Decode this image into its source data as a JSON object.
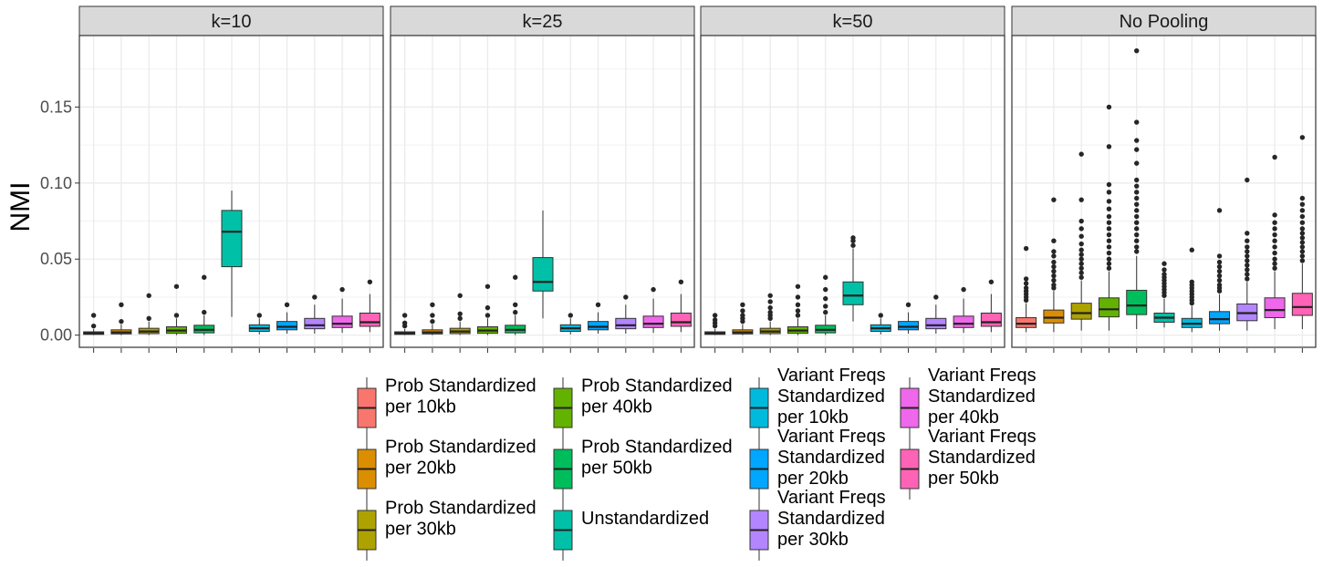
{
  "chart_data": {
    "type": "boxplot",
    "ylabel": "NMI",
    "xlabel": "",
    "ylim": [
      -0.008,
      0.197
    ],
    "y_ticks": [
      "0.00",
      "0.05",
      "0.10",
      "0.15"
    ],
    "grid": true,
    "legend_position": "bottom",
    "panels": [
      {
        "label": "k=10",
        "boxes": [
          {
            "series": 0,
            "whisker_low": 0.0,
            "q1": 0.0005,
            "median": 0.0012,
            "q3": 0.0022,
            "whisker_high": 0.004,
            "outliers": [
              0.006,
              0.013
            ]
          },
          {
            "series": 1,
            "whisker_low": 0.0,
            "q1": 0.0008,
            "median": 0.0018,
            "q3": 0.0035,
            "whisker_high": 0.007,
            "outliers": [
              0.009,
              0.02
            ]
          },
          {
            "series": 2,
            "whisker_low": 0.0,
            "q1": 0.001,
            "median": 0.0024,
            "q3": 0.0045,
            "whisker_high": 0.009,
            "outliers": [
              0.011,
              0.026
            ]
          },
          {
            "series": 3,
            "whisker_low": 0.0,
            "q1": 0.0012,
            "median": 0.003,
            "q3": 0.0055,
            "whisker_high": 0.011,
            "outliers": [
              0.013,
              0.032
            ]
          },
          {
            "series": 4,
            "whisker_low": 0.0,
            "q1": 0.0015,
            "median": 0.0035,
            "q3": 0.0065,
            "whisker_high": 0.013,
            "outliers": [
              0.015,
              0.038
            ]
          },
          {
            "series": 5,
            "whisker_low": 0.012,
            "q1": 0.045,
            "median": 0.068,
            "q3": 0.082,
            "whisker_high": 0.095,
            "outliers": []
          },
          {
            "series": 6,
            "whisker_low": 0.0005,
            "q1": 0.0025,
            "median": 0.0045,
            "q3": 0.0068,
            "whisker_high": 0.011,
            "outliers": [
              0.013
            ]
          },
          {
            "series": 7,
            "whisker_low": 0.001,
            "q1": 0.0035,
            "median": 0.0055,
            "q3": 0.009,
            "whisker_high": 0.015,
            "outliers": [
              0.02
            ]
          },
          {
            "series": 8,
            "whisker_low": 0.001,
            "q1": 0.0042,
            "median": 0.0065,
            "q3": 0.011,
            "whisker_high": 0.02,
            "outliers": [
              0.025
            ]
          },
          {
            "series": 9,
            "whisker_low": 0.0015,
            "q1": 0.005,
            "median": 0.0075,
            "q3": 0.0125,
            "whisker_high": 0.024,
            "outliers": [
              0.03
            ]
          },
          {
            "series": 10,
            "whisker_low": 0.002,
            "q1": 0.0058,
            "median": 0.0085,
            "q3": 0.0145,
            "whisker_high": 0.027,
            "outliers": [
              0.035
            ]
          }
        ]
      },
      {
        "label": "k=25",
        "boxes": [
          {
            "series": 0,
            "whisker_low": 0.0,
            "q1": 0.0005,
            "median": 0.0012,
            "q3": 0.0022,
            "whisker_high": 0.004,
            "outliers": [
              0.006,
              0.008,
              0.013
            ]
          },
          {
            "series": 1,
            "whisker_low": 0.0,
            "q1": 0.0008,
            "median": 0.0018,
            "q3": 0.0035,
            "whisker_high": 0.007,
            "outliers": [
              0.009,
              0.013,
              0.02
            ]
          },
          {
            "series": 2,
            "whisker_low": 0.0,
            "q1": 0.001,
            "median": 0.0024,
            "q3": 0.0045,
            "whisker_high": 0.009,
            "outliers": [
              0.011,
              0.014,
              0.026
            ]
          },
          {
            "series": 3,
            "whisker_low": 0.0,
            "q1": 0.0012,
            "median": 0.003,
            "q3": 0.0055,
            "whisker_high": 0.011,
            "outliers": [
              0.013,
              0.018,
              0.032
            ]
          },
          {
            "series": 4,
            "whisker_low": 0.0,
            "q1": 0.0015,
            "median": 0.0035,
            "q3": 0.0065,
            "whisker_high": 0.013,
            "outliers": [
              0.015,
              0.02,
              0.038
            ]
          },
          {
            "series": 5,
            "whisker_low": 0.011,
            "q1": 0.029,
            "median": 0.035,
            "q3": 0.051,
            "whisker_high": 0.082,
            "outliers": []
          },
          {
            "series": 6,
            "whisker_low": 0.0005,
            "q1": 0.0025,
            "median": 0.0045,
            "q3": 0.0068,
            "whisker_high": 0.011,
            "outliers": [
              0.013
            ]
          },
          {
            "series": 7,
            "whisker_low": 0.001,
            "q1": 0.0035,
            "median": 0.0055,
            "q3": 0.009,
            "whisker_high": 0.015,
            "outliers": [
              0.02
            ]
          },
          {
            "series": 8,
            "whisker_low": 0.001,
            "q1": 0.0042,
            "median": 0.0065,
            "q3": 0.011,
            "whisker_high": 0.02,
            "outliers": [
              0.025
            ]
          },
          {
            "series": 9,
            "whisker_low": 0.0015,
            "q1": 0.005,
            "median": 0.0075,
            "q3": 0.0125,
            "whisker_high": 0.024,
            "outliers": [
              0.03
            ]
          },
          {
            "series": 10,
            "whisker_low": 0.002,
            "q1": 0.0058,
            "median": 0.0085,
            "q3": 0.0145,
            "whisker_high": 0.027,
            "outliers": [
              0.035
            ]
          }
        ]
      },
      {
        "label": "k=50",
        "boxes": [
          {
            "series": 0,
            "whisker_low": 0.0,
            "q1": 0.0005,
            "median": 0.0012,
            "q3": 0.0022,
            "whisker_high": 0.004,
            "outliers": [
              0.006,
              0.008,
              0.01,
              0.013
            ]
          },
          {
            "series": 1,
            "whisker_low": 0.0,
            "q1": 0.0008,
            "median": 0.0018,
            "q3": 0.0035,
            "whisker_high": 0.007,
            "outliers": [
              0.009,
              0.011,
              0.013,
              0.016,
              0.02
            ]
          },
          {
            "series": 2,
            "whisker_low": 0.0,
            "q1": 0.001,
            "median": 0.0024,
            "q3": 0.0045,
            "whisker_high": 0.009,
            "outliers": [
              0.011,
              0.013,
              0.015,
              0.018,
              0.022,
              0.026
            ]
          },
          {
            "series": 3,
            "whisker_low": 0.0,
            "q1": 0.0012,
            "median": 0.003,
            "q3": 0.0055,
            "whisker_high": 0.011,
            "outliers": [
              0.013,
              0.016,
              0.02,
              0.025,
              0.032
            ]
          },
          {
            "series": 4,
            "whisker_low": 0.0,
            "q1": 0.0015,
            "median": 0.0035,
            "q3": 0.0065,
            "whisker_high": 0.013,
            "outliers": [
              0.015,
              0.019,
              0.024,
              0.03,
              0.038
            ]
          },
          {
            "series": 5,
            "whisker_low": 0.009,
            "q1": 0.02,
            "median": 0.026,
            "q3": 0.035,
            "whisker_high": 0.057,
            "outliers": [
              0.059,
              0.062,
              0.064
            ]
          },
          {
            "series": 6,
            "whisker_low": 0.0005,
            "q1": 0.0025,
            "median": 0.0045,
            "q3": 0.0068,
            "whisker_high": 0.011,
            "outliers": [
              0.013
            ]
          },
          {
            "series": 7,
            "whisker_low": 0.001,
            "q1": 0.0035,
            "median": 0.0055,
            "q3": 0.009,
            "whisker_high": 0.015,
            "outliers": [
              0.02
            ]
          },
          {
            "series": 8,
            "whisker_low": 0.001,
            "q1": 0.0042,
            "median": 0.0065,
            "q3": 0.011,
            "whisker_high": 0.02,
            "outliers": [
              0.025
            ]
          },
          {
            "series": 9,
            "whisker_low": 0.0015,
            "q1": 0.005,
            "median": 0.0075,
            "q3": 0.0125,
            "whisker_high": 0.024,
            "outliers": [
              0.03
            ]
          },
          {
            "series": 10,
            "whisker_low": 0.002,
            "q1": 0.0058,
            "median": 0.0085,
            "q3": 0.0145,
            "whisker_high": 0.027,
            "outliers": [
              0.035
            ]
          }
        ]
      },
      {
        "label": "No Pooling",
        "boxes": [
          {
            "series": 0,
            "whisker_low": 0.002,
            "q1": 0.005,
            "median": 0.0075,
            "q3": 0.0115,
            "whisker_high": 0.021,
            "outliers": [
              0.023,
              0.025,
              0.027,
              0.029,
              0.031,
              0.034,
              0.037,
              0.057
            ]
          },
          {
            "series": 1,
            "whisker_low": 0.002,
            "q1": 0.008,
            "median": 0.0115,
            "q3": 0.0165,
            "whisker_high": 0.029,
            "outliers": [
              0.031,
              0.033,
              0.036,
              0.039,
              0.042,
              0.045,
              0.048,
              0.052,
              0.055,
              0.062,
              0.089
            ]
          },
          {
            "series": 2,
            "whisker_low": 0.003,
            "q1": 0.0105,
            "median": 0.0145,
            "q3": 0.021,
            "whisker_high": 0.036,
            "outliers": [
              0.038,
              0.041,
              0.044,
              0.047,
              0.05,
              0.053,
              0.056,
              0.06,
              0.065,
              0.07,
              0.075,
              0.089,
              0.119
            ]
          },
          {
            "series": 3,
            "whisker_low": 0.003,
            "q1": 0.012,
            "median": 0.017,
            "q3": 0.0245,
            "whisker_high": 0.042,
            "outliers": [
              0.044,
              0.047,
              0.05,
              0.054,
              0.058,
              0.062,
              0.066,
              0.07,
              0.074,
              0.078,
              0.083,
              0.088,
              0.094,
              0.099,
              0.124,
              0.15
            ]
          },
          {
            "series": 4,
            "whisker_low": 0.004,
            "q1": 0.0135,
            "median": 0.0195,
            "q3": 0.0295,
            "whisker_high": 0.052,
            "outliers": [
              0.055,
              0.058,
              0.062,
              0.066,
              0.07,
              0.074,
              0.078,
              0.082,
              0.086,
              0.09,
              0.094,
              0.098,
              0.102,
              0.113,
              0.122,
              0.128,
              0.14,
              0.187
            ]
          },
          {
            "series": 5,
            "whisker_low": 0.005,
            "q1": 0.0085,
            "median": 0.0115,
            "q3": 0.0145,
            "whisker_high": 0.024,
            "outliers": [
              0.026,
              0.028,
              0.03,
              0.032,
              0.034,
              0.036,
              0.038,
              0.04,
              0.043,
              0.047
            ]
          },
          {
            "series": 6,
            "whisker_low": 0.002,
            "q1": 0.005,
            "median": 0.0075,
            "q3": 0.011,
            "whisker_high": 0.019,
            "outliers": [
              0.021,
              0.023,
              0.025,
              0.027,
              0.029,
              0.031,
              0.033,
              0.035,
              0.056
            ]
          },
          {
            "series": 7,
            "whisker_low": 0.003,
            "q1": 0.0075,
            "median": 0.0105,
            "q3": 0.0155,
            "whisker_high": 0.027,
            "outliers": [
              0.029,
              0.031,
              0.033,
              0.036,
              0.039,
              0.042,
              0.045,
              0.048,
              0.052,
              0.082
            ]
          },
          {
            "series": 8,
            "whisker_low": 0.003,
            "q1": 0.0095,
            "median": 0.0145,
            "q3": 0.0205,
            "whisker_high": 0.035,
            "outliers": [
              0.037,
              0.04,
              0.043,
              0.046,
              0.049,
              0.052,
              0.055,
              0.058,
              0.062,
              0.067,
              0.102
            ]
          },
          {
            "series": 9,
            "whisker_low": 0.004,
            "q1": 0.0115,
            "median": 0.0165,
            "q3": 0.0245,
            "whisker_high": 0.042,
            "outliers": [
              0.044,
              0.047,
              0.05,
              0.054,
              0.058,
              0.062,
              0.066,
              0.07,
              0.074,
              0.079,
              0.117
            ]
          },
          {
            "series": 10,
            "whisker_low": 0.004,
            "q1": 0.013,
            "median": 0.0185,
            "q3": 0.0275,
            "whisker_high": 0.047,
            "outliers": [
              0.049,
              0.052,
              0.055,
              0.058,
              0.061,
              0.064,
              0.067,
              0.07,
              0.074,
              0.078,
              0.082,
              0.086,
              0.09,
              0.13
            ]
          }
        ]
      }
    ],
    "series": [
      {
        "name": "Prob Standardized per 10kb",
        "label_lines": [
          "Prob Standardized",
          "per 10kb"
        ],
        "color": "#F8766D"
      },
      {
        "name": "Prob Standardized per 20kb",
        "label_lines": [
          "Prob Standardized",
          "per 20kb"
        ],
        "color": "#DB8E00"
      },
      {
        "name": "Prob Standardized per 30kb",
        "label_lines": [
          "Prob Standardized",
          "per 30kb"
        ],
        "color": "#AEA200"
      },
      {
        "name": "Prob Standardized per 40kb",
        "label_lines": [
          "Prob Standardized",
          "per 40kb"
        ],
        "color": "#64B200"
      },
      {
        "name": "Prob Standardized per 50kb",
        "label_lines": [
          "Prob Standardized",
          "per 50kb"
        ],
        "color": "#00BD5C"
      },
      {
        "name": "Unstandardized",
        "label_lines": [
          "Unstandardized"
        ],
        "color": "#00C1A7"
      },
      {
        "name": "Variant Freqs Standardized per 10kb",
        "label_lines": [
          "Variant Freqs",
          "Standardized",
          "per 10kb"
        ],
        "color": "#00BADE"
      },
      {
        "name": "Variant Freqs Standardized per 20kb",
        "label_lines": [
          "Variant Freqs",
          "Standardized",
          "per 20kb"
        ],
        "color": "#00A6FF"
      },
      {
        "name": "Variant Freqs Standardized per 30kb",
        "label_lines": [
          "Variant Freqs",
          "Standardized",
          "per 30kb"
        ],
        "color": "#B385FF"
      },
      {
        "name": "Variant Freqs Standardized per 40kb",
        "label_lines": [
          "Variant Freqs",
          "Standardized",
          "per 40kb"
        ],
        "color": "#EF67EB"
      },
      {
        "name": "Variant Freqs Standardized per 50kb",
        "label_lines": [
          "Variant Freqs",
          "Standardized",
          "per 50kb"
        ],
        "color": "#FF63B6"
      }
    ]
  }
}
